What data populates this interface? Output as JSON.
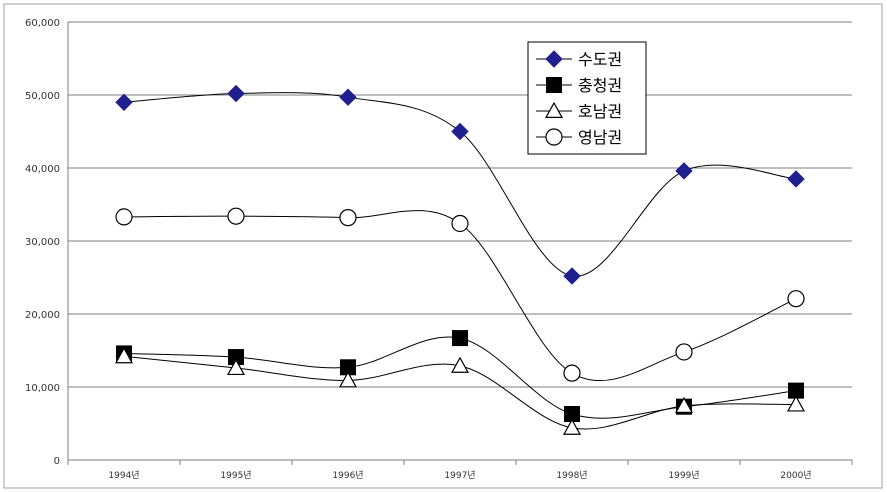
{
  "chart_data": {
    "type": "line",
    "categories": [
      "1994년",
      "1995년",
      "1996년",
      "1997년",
      "1998년",
      "1999년",
      "2000년"
    ],
    "series": [
      {
        "name": "수도권",
        "marker": "diamond-filled",
        "color": "#1f1f8f",
        "values": [
          49000,
          50200,
          49700,
          45000,
          25200,
          39600,
          38500
        ]
      },
      {
        "name": "충청권",
        "marker": "square-filled",
        "color": "#000000",
        "values": [
          14600,
          14100,
          12700,
          16700,
          6300,
          7300,
          9500
        ]
      },
      {
        "name": "호남권",
        "marker": "triangle-open",
        "color": "#000000",
        "values": [
          14200,
          12600,
          10900,
          12900,
          4400,
          7400,
          7600
        ]
      },
      {
        "name": "영남권",
        "marker": "circle-open",
        "color": "#000000",
        "values": [
          33300,
          33400,
          33200,
          32400,
          11900,
          14800,
          22100
        ]
      }
    ],
    "ylim": [
      0,
      60000
    ],
    "yticks": [
      "0",
      "10,000",
      "20,000",
      "30,000",
      "40,000",
      "50,000",
      "60,000"
    ],
    "ytick_values": [
      0,
      10000,
      20000,
      30000,
      40000,
      50000,
      60000
    ],
    "grid": true,
    "legend_position": "top-right",
    "xlabel": "",
    "ylabel": "",
    "title": ""
  }
}
